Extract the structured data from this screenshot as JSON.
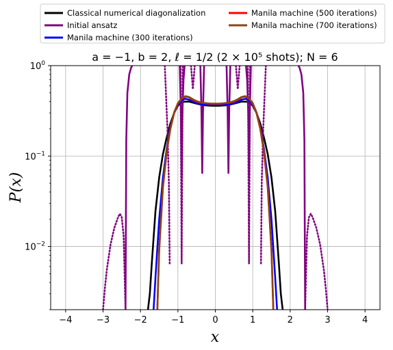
{
  "chart_data": {
    "type": "line",
    "title": "a = −1, b = 2, ℓ = 1/2 (2 × 10⁵ shots); N = 6",
    "xlabel": "x",
    "ylabel": "P(x)",
    "xlim": [
      -4.4,
      4.4
    ],
    "ylim": [
      0.002,
      1
    ],
    "yscale": "log",
    "grid": true,
    "legend_position": "top, above plot, 2 columns",
    "x_ticks": [
      {
        "value": -4,
        "label": "−4"
      },
      {
        "value": -3,
        "label": "−3"
      },
      {
        "value": -2,
        "label": "−2"
      },
      {
        "value": -1,
        "label": "−1"
      },
      {
        "value": 0,
        "label": "0"
      },
      {
        "value": 1,
        "label": "1"
      },
      {
        "value": 2,
        "label": "2"
      },
      {
        "value": 3,
        "label": "3"
      },
      {
        "value": 4,
        "label": "4"
      }
    ],
    "y_ticks": [
      {
        "value": 1,
        "base": "10",
        "exp": "0"
      },
      {
        "value": 0.1,
        "base": "10",
        "exp": "−1"
      },
      {
        "value": 0.01,
        "base": "10",
        "exp": "−2"
      }
    ],
    "series": [
      {
        "name": "Classical numerical diagonalization",
        "color": "#000000",
        "style": "solid",
        "x": [
          -1.8,
          -1.75,
          -1.7,
          -1.6,
          -1.5,
          -1.4,
          -1.3,
          -1.2,
          -1.1,
          -1.0,
          -0.9,
          -0.8,
          -0.7,
          -0.6,
          -0.5,
          -0.4,
          -0.3,
          -0.2,
          -0.1,
          0.0,
          0.1,
          0.2,
          0.3,
          0.4,
          0.5,
          0.6,
          0.7,
          0.8,
          0.9,
          1.0,
          1.1,
          1.2,
          1.3,
          1.4,
          1.5,
          1.6,
          1.7,
          1.75,
          1.8
        ],
        "y": [
          0.002,
          0.003,
          0.0063,
          0.0245,
          0.058,
          0.105,
          0.16,
          0.23,
          0.3,
          0.36,
          0.395,
          0.4,
          0.4,
          0.39,
          0.38,
          0.372,
          0.365,
          0.362,
          0.36,
          0.36,
          0.36,
          0.362,
          0.365,
          0.372,
          0.38,
          0.39,
          0.4,
          0.4,
          0.395,
          0.36,
          0.3,
          0.23,
          0.16,
          0.105,
          0.058,
          0.0245,
          0.0063,
          0.003,
          0.002
        ]
      },
      {
        "name": "Initial ansatz",
        "color": "#800080",
        "style": "solid",
        "x": [
          -2.4,
          -2.38,
          -2.35,
          -2.3,
          -2.25,
          -2.22
        ],
        "y": [
          0.002,
          0.15,
          0.5,
          0.8,
          0.95,
          1.0
        ]
      },
      {
        "name": "Initial ansatz",
        "color": "#800080",
        "style": "solid",
        "x": [
          2.22,
          2.25,
          2.3,
          2.35,
          2.38,
          2.4
        ],
        "y": [
          1.0,
          0.95,
          0.8,
          0.5,
          0.15,
          0.002
        ]
      },
      {
        "name": "Initial ansatz",
        "color": "#800080",
        "style": "solid",
        "x": [
          -0.95,
          -0.92,
          -0.9,
          -0.88,
          -0.85,
          -0.82
        ],
        "y": [
          1.0,
          0.3,
          0.06,
          0.3,
          0.7,
          1.0
        ]
      },
      {
        "name": "Initial ansatz",
        "color": "#800080",
        "style": "solid",
        "x": [
          0.82,
          0.85,
          0.88,
          0.9,
          0.92,
          0.95
        ],
        "y": [
          1.0,
          0.7,
          0.3,
          0.06,
          0.3,
          1.0
        ]
      },
      {
        "name": "Initial ansatz",
        "color": "#800080",
        "style": "solid",
        "x": [
          -0.4,
          -0.37,
          -0.35,
          -0.33,
          -0.3
        ],
        "y": [
          1.0,
          0.3,
          0.065,
          0.3,
          1.0
        ]
      },
      {
        "name": "Initial ansatz",
        "color": "#800080",
        "style": "solid",
        "x": [
          0.3,
          0.33,
          0.35,
          0.37,
          0.4
        ],
        "y": [
          1.0,
          0.3,
          0.065,
          0.3,
          1.0
        ]
      },
      {
        "name": "Initial ansatz",
        "color": "#800080",
        "style": "dotted",
        "x": [
          -3.0,
          -2.95,
          -2.9,
          -2.8,
          -2.7,
          -2.6,
          -2.55,
          -2.5,
          -2.45,
          -2.4
        ],
        "y": [
          0.002,
          0.0035,
          0.0055,
          0.0105,
          0.016,
          0.021,
          0.023,
          0.021,
          0.013,
          0.002
        ]
      },
      {
        "name": "Initial ansatz",
        "color": "#800080",
        "style": "dotted",
        "x": [
          2.4,
          2.45,
          2.5,
          2.55,
          2.6,
          2.7,
          2.8,
          2.9,
          2.95,
          3.0
        ],
        "y": [
          0.002,
          0.013,
          0.021,
          0.023,
          0.021,
          0.016,
          0.0105,
          0.0055,
          0.0035,
          0.002
        ]
      },
      {
        "name": "Initial ansatz",
        "color": "#800080",
        "style": "dotted",
        "x": [
          -1.35,
          -1.32,
          -1.28,
          -1.24,
          -1.22
        ],
        "y": [
          1.0,
          0.5,
          0.2,
          0.05,
          0.0065
        ]
      },
      {
        "name": "Initial ansatz",
        "color": "#800080",
        "style": "dotted",
        "x": [
          1.22,
          1.24,
          1.28,
          1.32,
          1.35
        ],
        "y": [
          0.0065,
          0.05,
          0.2,
          0.5,
          1.0
        ]
      },
      {
        "name": "Initial ansatz",
        "color": "#800080",
        "style": "dotted",
        "x": [
          -0.93,
          -0.92,
          -0.9,
          -0.88,
          -0.87
        ],
        "y": [
          1.0,
          0.2,
          0.0065,
          0.2,
          1.0
        ]
      },
      {
        "name": "Initial ansatz",
        "color": "#800080",
        "style": "dotted",
        "x": [
          0.87,
          0.88,
          0.9,
          0.92,
          0.93
        ],
        "y": [
          1.0,
          0.2,
          0.0065,
          0.2,
          1.0
        ]
      },
      {
        "name": "Initial ansatz",
        "color": "#800080",
        "style": "dotted",
        "x": [
          -0.65,
          -0.62,
          -0.6,
          -0.58,
          -0.55
        ],
        "y": [
          1.0,
          0.7,
          0.55,
          0.7,
          1.0
        ]
      },
      {
        "name": "Initial ansatz",
        "color": "#800080",
        "style": "dotted",
        "x": [
          0.55,
          0.58,
          0.6,
          0.62,
          0.65
        ],
        "y": [
          1.0,
          0.7,
          0.55,
          0.7,
          1.0
        ]
      },
      {
        "name": "Manila machine (300 iterations)",
        "color": "#0000ff",
        "style": "solid",
        "x": [
          -1.65,
          -1.6,
          -1.55,
          -1.5,
          -1.4,
          -1.3,
          -1.2,
          -1.1,
          -1.0,
          -0.9,
          -0.8,
          -0.7,
          -0.6,
          -0.5,
          -0.4,
          -0.3,
          -0.2,
          -0.1,
          0.0,
          0.1,
          0.2,
          0.3,
          0.4,
          0.5,
          0.6,
          0.7,
          0.8,
          0.9,
          1.0,
          1.1,
          1.2,
          1.3,
          1.4,
          1.5,
          1.55,
          1.6,
          1.65
        ],
        "y": [
          0.002,
          0.0045,
          0.0095,
          0.02,
          0.058,
          0.12,
          0.21,
          0.3,
          0.37,
          0.415,
          0.43,
          0.42,
          0.4,
          0.385,
          0.375,
          0.37,
          0.37,
          0.37,
          0.37,
          0.37,
          0.37,
          0.37,
          0.375,
          0.385,
          0.4,
          0.42,
          0.43,
          0.415,
          0.37,
          0.3,
          0.21,
          0.12,
          0.058,
          0.02,
          0.0095,
          0.0045,
          0.002
        ]
      },
      {
        "name": "Manila machine (500 iterations)",
        "color": "#ff0000",
        "style": "solid",
        "x": [
          -1.55,
          -1.5,
          -1.4,
          -1.3,
          -1.2,
          -1.1,
          -1.0,
          -0.9,
          -0.8,
          -0.7,
          -0.6,
          -0.5,
          -0.4,
          -0.3,
          -0.2,
          -0.1,
          0.0,
          0.1,
          0.2,
          0.3,
          0.4,
          0.5,
          0.6,
          0.7,
          0.8,
          0.9,
          1.0,
          1.1,
          1.2,
          1.3,
          1.4,
          1.5,
          1.55
        ],
        "y": [
          0.002,
          0.009,
          0.045,
          0.11,
          0.2,
          0.3,
          0.38,
          0.43,
          0.455,
          0.445,
          0.42,
          0.4,
          0.39,
          0.385,
          0.38,
          0.378,
          0.378,
          0.378,
          0.38,
          0.385,
          0.39,
          0.4,
          0.42,
          0.445,
          0.455,
          0.43,
          0.38,
          0.3,
          0.2,
          0.11,
          0.045,
          0.009,
          0.002
        ]
      },
      {
        "name": "Manila machine (700 iterations)",
        "color": "#8b4513",
        "style": "solid",
        "x": [
          -1.55,
          -1.5,
          -1.4,
          -1.3,
          -1.2,
          -1.1,
          -1.0,
          -0.9,
          -0.8,
          -0.7,
          -0.6,
          -0.5,
          -0.4,
          -0.3,
          -0.2,
          -0.1,
          0.0,
          0.1,
          0.2,
          0.3,
          0.4,
          0.5,
          0.6,
          0.7,
          0.8,
          0.9,
          1.0,
          1.1,
          1.2,
          1.3,
          1.4,
          1.5,
          1.55
        ],
        "y": [
          0.002,
          0.0095,
          0.046,
          0.112,
          0.205,
          0.305,
          0.385,
          0.435,
          0.46,
          0.45,
          0.425,
          0.405,
          0.393,
          0.387,
          0.383,
          0.38,
          0.38,
          0.38,
          0.383,
          0.387,
          0.393,
          0.405,
          0.425,
          0.45,
          0.46,
          0.435,
          0.385,
          0.305,
          0.205,
          0.112,
          0.046,
          0.0095,
          0.002
        ]
      }
    ],
    "legend": [
      {
        "name": "Classical numerical diagonalization",
        "color": "#000000"
      },
      {
        "name": "Initial ansatz",
        "color": "#800080"
      },
      {
        "name": "Manila machine (300 iterations)",
        "color": "#0000ff"
      },
      {
        "name": "Manila machine (500 iterations)",
        "color": "#ff0000"
      },
      {
        "name": "Manila machine (700 iterations)",
        "color": "#8b4513"
      }
    ]
  }
}
